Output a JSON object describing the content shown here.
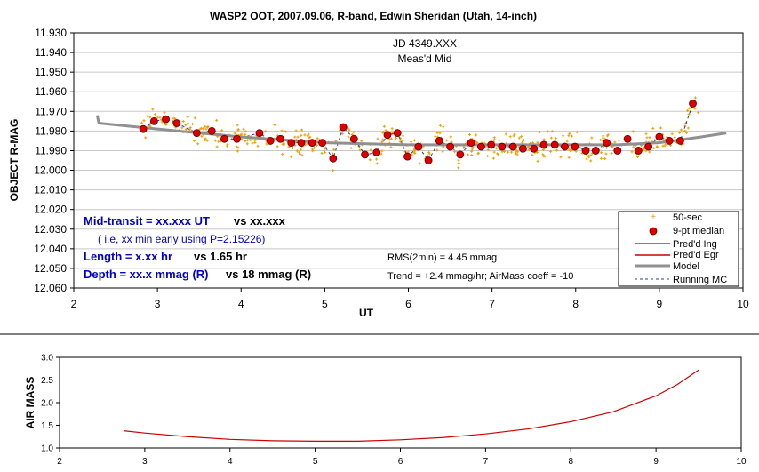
{
  "chart_data": [
    {
      "type": "scatter",
      "title": "WASP2 OOT, 2007.09.06, R-band, Edwin Sheridan (Utah, 14-inch)",
      "xlabel": "UT",
      "ylabel": "OBJECT R-MAG",
      "xlim": [
        2,
        10
      ],
      "ylim": [
        11.93,
        12.06
      ],
      "y_inverted": true,
      "x_ticks": [
        "2",
        "3",
        "4",
        "5",
        "6",
        "7",
        "8",
        "9",
        "10"
      ],
      "y_ticks": [
        "11.930",
        "11.940",
        "11.950",
        "11.960",
        "11.970",
        "11.980",
        "11.990",
        "12.000",
        "12.010",
        "12.020",
        "12.030",
        "12.040",
        "12.050",
        "12.060"
      ],
      "grid": "horizontal",
      "legend_position": "bottom-right",
      "series": [
        {
          "name": "50-sec",
          "color": "#f0a000",
          "marker": "small plus",
          "scatter_range": {
            "x": [
              2.8,
              9.5
            ],
            "y_center_trend": true,
            "spread": 0.006
          }
        },
        {
          "name": "9-pt median",
          "color": "#e00000",
          "marker": "circle",
          "x": [
            2.83,
            2.96,
            3.1,
            3.23,
            3.47,
            3.65,
            3.8,
            3.95,
            4.22,
            4.35,
            4.47,
            4.6,
            4.72,
            4.85,
            4.97,
            5.1,
            5.22,
            5.35,
            5.48,
            5.62,
            5.75,
            5.87,
            5.99,
            6.12,
            6.24,
            6.37,
            6.5,
            6.62,
            6.75,
            6.87,
            6.99,
            7.12,
            7.25,
            7.37,
            7.5,
            7.62,
            7.75,
            7.87,
            7.99,
            8.12,
            8.24,
            8.37,
            8.5,
            8.62,
            8.75,
            8.87,
            9.0,
            9.12,
            9.25,
            9.4
          ],
          "values": [
            11.979,
            11.975,
            11.974,
            11.976,
            11.981,
            11.98,
            11.984,
            11.984,
            11.981,
            11.985,
            11.984,
            11.986,
            11.986,
            11.986,
            11.986,
            11.994,
            11.978,
            11.984,
            11.992,
            11.991,
            11.982,
            11.981,
            11.993,
            11.988,
            11.995,
            11.985,
            11.988,
            11.992,
            11.986,
            11.988,
            11.987,
            11.988,
            11.988,
            11.989,
            11.989,
            11.987,
            11.987,
            11.988,
            11.988,
            11.99,
            11.99,
            11.986,
            11.99,
            11.984,
            11.99,
            11.988,
            11.983,
            11.985,
            11.985,
            11.966
          ]
        },
        {
          "name": "Pred'd Ing",
          "color": "#008060",
          "values": []
        },
        {
          "name": "Pred'd Egr",
          "color": "#cc0000",
          "values": []
        },
        {
          "name": "Model",
          "color": "#909090",
          "x": [
            2.28,
            2.3,
            3.0,
            4.0,
            5.0,
            6.0,
            7.0,
            8.0,
            8.5,
            9.0,
            9.5,
            9.8
          ],
          "values": [
            11.972,
            11.976,
            11.979,
            11.983,
            11.986,
            11.987,
            11.987,
            11.987,
            11.987,
            11.986,
            11.983,
            11.981
          ]
        },
        {
          "name": "Running MC",
          "color": "#2040a0",
          "style": "dashed"
        }
      ],
      "annotations": {
        "jd": "JD 4349.XXX",
        "meas_mid": "Meas'd Mid",
        "mid_transit_label": "Mid-transit = xx.xxx UT",
        "mid_transit_vs": "vs xx.xxx",
        "early_note": "( i.e, xx min early using P=2.15226)",
        "length_label": "Length = x.xx hr",
        "length_vs": "vs 1.65 hr",
        "depth_label": "Depth = xx.x mmag (R)",
        "depth_vs": "vs 18 mmag (R)",
        "rms": "RMS(2min) = 4.45 mmag",
        "trend": "Trend = +2.4 mmag/hr; AirMass coeff = -10"
      }
    },
    {
      "type": "line",
      "title": "",
      "xlabel": "",
      "ylabel": "AIR MASS",
      "xlim": [
        2,
        10
      ],
      "ylim": [
        1.0,
        3.0
      ],
      "x_ticks": [
        "2",
        "3",
        "4",
        "5",
        "6",
        "7",
        "8",
        "9",
        "10"
      ],
      "y_ticks": [
        "1.0",
        "1.5",
        "2.0",
        "2.5",
        "3.0"
      ],
      "series": [
        {
          "color": "#cc0000",
          "x": [
            2.75,
            3.0,
            3.5,
            4.0,
            4.5,
            5.0,
            5.5,
            6.0,
            6.5,
            7.0,
            7.5,
            8.0,
            8.5,
            9.0,
            9.25,
            9.5
          ],
          "values": [
            1.38,
            1.33,
            1.25,
            1.19,
            1.16,
            1.15,
            1.15,
            1.18,
            1.23,
            1.31,
            1.42,
            1.58,
            1.8,
            2.15,
            2.4,
            2.72
          ]
        }
      ]
    }
  ]
}
